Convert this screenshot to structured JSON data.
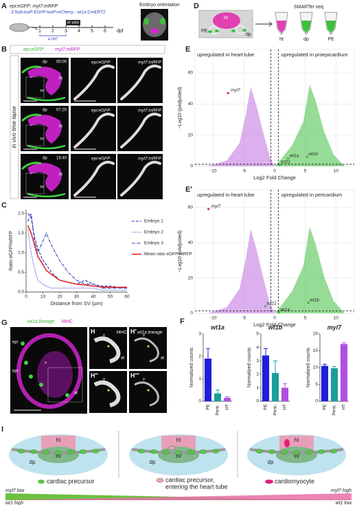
{
  "panels": {
    "A": {
      "letter": "A",
      "genotype1": "epi:eGFP; myl7:mRFP",
      "genotype2": "-3.5ubi:loxP-EGFP-loxP-mCherry ; wt1a:CreERT2",
      "timeline": [
        1,
        2,
        3,
        4,
        5,
        6
      ],
      "unit": "dpf",
      "invivo": "in vivo",
      "drug": "4-OHT",
      "orientation": "Embryo orientation"
    },
    "B": {
      "letter": "B",
      "col1": "epi:eGFP",
      "col2": "myl7:mRFP",
      "side": "in vivo time lapse",
      "times": [
        "00:00",
        "07:20",
        "15:40"
      ],
      "dp": "dp",
      "ht": "ht",
      "sv": "sv"
    },
    "D": {
      "letter": "D",
      "method": "SMARTer seq",
      "pe": "PE",
      "ht": "ht",
      "dp": "dp",
      "tubes": [
        "ht",
        "dp",
        "PE"
      ]
    },
    "G": {
      "letter": "G",
      "lineage": "wt1a lineage",
      "mhc": "MHC",
      "epi": "epi",
      "v": "v",
      "at": "at"
    },
    "H": {
      "letters": [
        "H",
        "H'",
        "H''",
        "H'''"
      ],
      "mhc": "MHC",
      "lineage": "wt1a lineage",
      "v": "v",
      "at": "at"
    },
    "F": {
      "letter": "F"
    },
    "I": {
      "letter": "I",
      "ht": "ht",
      "sv": "sv",
      "dp": "dp",
      "legend": [
        "cardiac precursor",
        "cardiac precursor,",
        "entering the heart tube",
        "cardiomyocyte"
      ],
      "myl7_low": "myl7 low",
      "myl7_high": "myl7 high",
      "wt1_high": "wt1 high",
      "wt1_low": "wt1 low"
    }
  },
  "chart_data": [
    {
      "type": "line",
      "letter": "C",
      "xlabel": "Distance from SV (µm)",
      "ylabel": "Ratio eGFP/mRFP",
      "x": [
        1,
        3,
        5,
        7,
        10,
        12,
        15,
        20,
        25,
        30,
        35,
        40,
        45,
        50,
        55,
        60
      ],
      "series": [
        {
          "name": "Embryo 1",
          "color": "#2030c0",
          "style": "dashed",
          "values": [
            2.0,
            1.9,
            1.4,
            1.1,
            0.8,
            0.7,
            0.5,
            0.3,
            0.25,
            0.2,
            0.3,
            0.2,
            0.15,
            0.15,
            0.12,
            0.1
          ]
        },
        {
          "name": "Embryo 2",
          "color": "#2030c0",
          "style": "dotted",
          "values": [
            1.6,
            1.0,
            0.6,
            0.3,
            0.2,
            0.15,
            0.1,
            0.1,
            0.1,
            0.1,
            0.1,
            0.1,
            0.05,
            0.05,
            0.05,
            0.05
          ]
        },
        {
          "name": "Embryo 3",
          "color": "#2030c0",
          "style": "dashdot",
          "values": [
            1.8,
            2.0,
            1.3,
            1.0,
            1.3,
            1.5,
            1.2,
            0.8,
            0.5,
            0.3,
            0.2,
            0.2,
            0.1,
            0.1,
            0.1,
            0.1
          ]
        },
        {
          "name": "Mean ratio eGFP/mRFP",
          "color": "#e31a1c",
          "style": "solid",
          "values": [
            1.7,
            1.5,
            1.2,
            0.9,
            0.7,
            0.55,
            0.45,
            0.3,
            0.25,
            0.2,
            0.18,
            0.15,
            0.13,
            0.12,
            0.12,
            0.12
          ]
        }
      ],
      "xlim": [
        0,
        60
      ],
      "xticks": [
        0,
        10,
        20,
        30,
        40,
        50,
        60
      ],
      "ylim": [
        0,
        2.1
      ],
      "yticks": [
        {
          "value": 0,
          "label": "0.0"
        },
        0.5,
        {
          "value": 1,
          "label": "1.0"
        },
        1.5,
        {
          "value": 2,
          "label": "2.0"
        }
      ]
    },
    {
      "type": "scatter",
      "letter": "E",
      "left_label": "upregulated in heart tube",
      "right_label": "upregulated in proepicardium",
      "xlabel": "Log2 Fold Change",
      "ylabel": "−Log10 (pAdjusted)",
      "series": [
        {
          "name": "myl7",
          "color": "#e0245e",
          "x": [
            -7.6
          ],
          "values": [
            47
          ]
        },
        {
          "name": "tcf21",
          "color": "#3cb43c",
          "x": [
            0.8
          ],
          "values": [
            1
          ]
        },
        {
          "name": "wt1a",
          "color": "#3cb43c",
          "x": [
            2.2
          ],
          "values": [
            5
          ]
        },
        {
          "name": "wt1b",
          "color": "#3cb43c",
          "x": [
            5.3
          ],
          "values": [
            6
          ]
        }
      ],
      "vlines": [
        -0.6,
        0.6
      ],
      "hline": 1.3,
      "xlim": [
        -13,
        13
      ],
      "xticks": [
        -10,
        -5,
        0,
        5,
        10
      ],
      "ylim": [
        0,
        75
      ],
      "yticks": [
        0,
        20,
        40,
        60
      ],
      "grid": true
    },
    {
      "type": "scatter",
      "letter": "E'",
      "left_label": "upregulated in heart tube",
      "right_label": "upregulated in pericardium",
      "xlabel": "Log2 Fold Change",
      "ylabel": "−Log10 (pAdjusted)",
      "series": [
        {
          "name": "myl7",
          "color": "#e0245e",
          "x": [
            -10.8
          ],
          "values": [
            59
          ]
        },
        {
          "name": "tcf21",
          "color": "#3cb43c",
          "x": [
            -1.5
          ],
          "values": [
            4
          ]
        },
        {
          "name": "wt1a",
          "color": "#3cb43c",
          "x": [
            0.7
          ],
          "values": [
            0.5
          ]
        },
        {
          "name": "wt1b",
          "color": "#3cb43c",
          "x": [
            5.5
          ],
          "values": [
            6
          ]
        }
      ],
      "vlines": [
        -0.6,
        0.6
      ],
      "hline": 1.3,
      "xlim": [
        -13,
        13
      ],
      "xticks": [
        -10,
        -5,
        0,
        5,
        10
      ],
      "ylim": [
        0,
        70
      ],
      "yticks": [
        0,
        20,
        40,
        60
      ],
      "grid": true
    },
    {
      "type": "bar",
      "title": "wt1a",
      "ylabel": "Normalized counts",
      "categories": [
        "PE",
        "Peric.",
        "HT"
      ],
      "values": [
        1.9,
        0.35,
        0.15
      ],
      "errors": [
        0.45,
        0.15,
        0.05
      ],
      "colors": [
        "#1f1fd6",
        "#1a9e9e",
        "#b04fe0"
      ],
      "ylim": [
        0,
        3
      ],
      "yticks": [
        0,
        1,
        2,
        3
      ]
    },
    {
      "type": "bar",
      "title": "wt1b",
      "ylabel": "Normalized counts",
      "categories": [
        "PE",
        "Peric.",
        "HT"
      ],
      "values": [
        3.4,
        2.1,
        1.0
      ],
      "errors": [
        0.5,
        0.9,
        0.3
      ],
      "colors": [
        "#1f1fd6",
        "#1a9e9e",
        "#b04fe0"
      ],
      "ylim": [
        0,
        5
      ],
      "yticks": [
        0,
        1,
        2,
        3,
        4,
        5
      ]
    },
    {
      "type": "bar",
      "title": "myl7",
      "ylabel": "Normalized counts",
      "categories": [
        "PE",
        "Peric.",
        "HT"
      ],
      "values": [
        10.5,
        9.8,
        17.0
      ],
      "errors": [
        0.5,
        0.5,
        0.4
      ],
      "colors": [
        "#1f1fd6",
        "#1a9e9e",
        "#b04fe0"
      ],
      "ylim": [
        0,
        20
      ],
      "yticks": [
        0,
        5,
        10,
        15,
        20
      ]
    }
  ]
}
